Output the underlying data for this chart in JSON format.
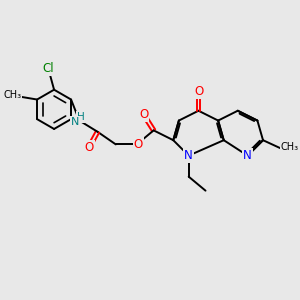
{
  "background_color": "#e8e8e8",
  "bond_color": "#000000",
  "N_color": "#0000ff",
  "O_color": "#ff0000",
  "Cl_color": "#008000",
  "NH_color": "#008080",
  "bond_width": 1.4,
  "figsize": [
    3.0,
    3.0
  ],
  "dpi": 100,
  "xlim": [
    0,
    10
  ],
  "ylim": [
    0,
    10
  ]
}
